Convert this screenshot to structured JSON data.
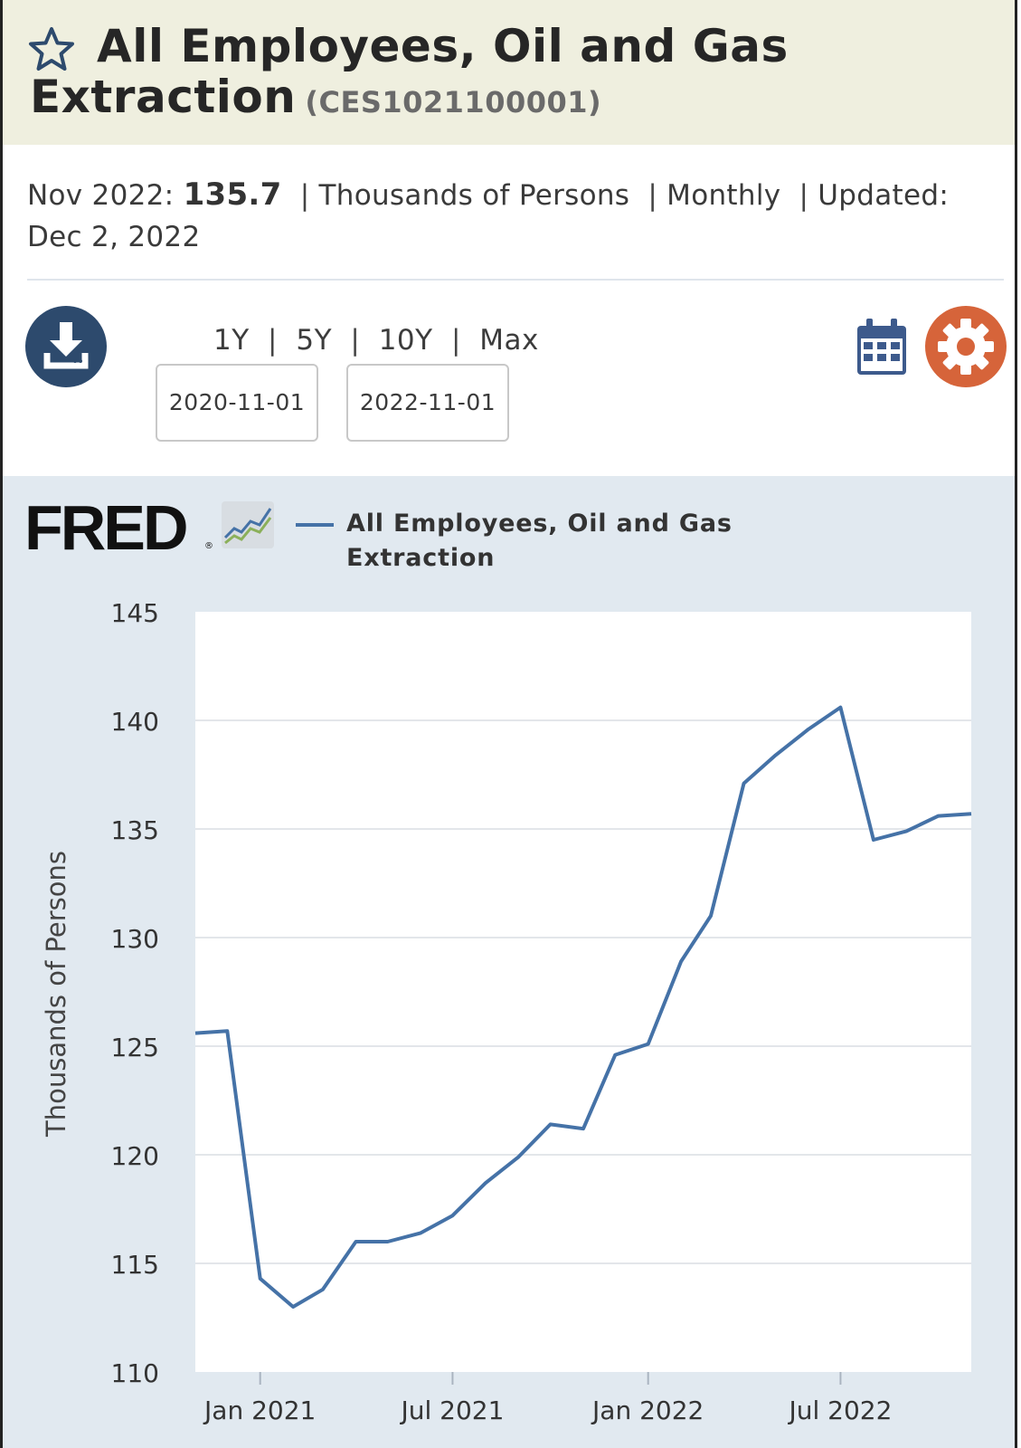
{
  "header": {
    "title_line1": "All Employees, Oil and Gas",
    "title_line2": "Extraction",
    "series_id": "(CES1021100001)"
  },
  "meta": {
    "date_label": "Nov 2022:",
    "value": "135.7",
    "units": "Thousands of Persons",
    "frequency": "Monthly",
    "updated_label": "Updated:",
    "updated_date": "Dec 2, 2022"
  },
  "controls": {
    "ranges": [
      "1Y",
      "5Y",
      "10Y",
      "Max"
    ],
    "start_date": "2020-11-01",
    "end_date": "2022-11-01"
  },
  "colors": {
    "series": "#4572a7",
    "download_button": "#2d4a6d",
    "settings_button": "#d6643a",
    "calendar_icon": "#3d5a8c"
  },
  "icons": [
    "star-icon",
    "download-icon",
    "calendar-icon",
    "gear-icon",
    "fred-chart-icon"
  ],
  "chart": {
    "logo": "FRED",
    "legend": "All Employees, Oil and Gas Extraction"
  },
  "chart_data": {
    "type": "line",
    "title": "",
    "xlabel": "",
    "ylabel": "Thousands of Persons",
    "ylim": [
      110,
      145
    ],
    "yticks": [
      110,
      115,
      120,
      125,
      130,
      135,
      140,
      145
    ],
    "xticks": [
      {
        "label": "Jan 2021",
        "date": "2021-01-01"
      },
      {
        "label": "Jul 2021",
        "date": "2021-07-01"
      },
      {
        "label": "Jan 2022",
        "date": "2022-01-01"
      },
      {
        "label": "Jul 2022",
        "date": "2022-07-01"
      }
    ],
    "grid": true,
    "series": [
      {
        "name": "All Employees, Oil and Gas Extraction",
        "x": [
          "2020-11-01",
          "2020-12-01",
          "2021-01-01",
          "2021-02-01",
          "2021-03-01",
          "2021-04-01",
          "2021-05-01",
          "2021-06-01",
          "2021-07-01",
          "2021-08-01",
          "2021-09-01",
          "2021-10-01",
          "2021-11-01",
          "2021-12-01",
          "2022-01-01",
          "2022-02-01",
          "2022-03-01",
          "2022-04-01",
          "2022-05-01",
          "2022-06-01",
          "2022-07-01",
          "2022-08-01",
          "2022-09-01",
          "2022-10-01",
          "2022-11-01"
        ],
        "values": [
          125.6,
          125.7,
          114.3,
          113.0,
          113.8,
          116.0,
          116.0,
          116.4,
          117.2,
          118.7,
          119.9,
          121.4,
          121.2,
          124.6,
          125.1,
          128.9,
          131.0,
          137.1,
          138.4,
          139.6,
          140.6,
          134.5,
          134.9,
          135.6,
          135.7
        ]
      }
    ]
  }
}
